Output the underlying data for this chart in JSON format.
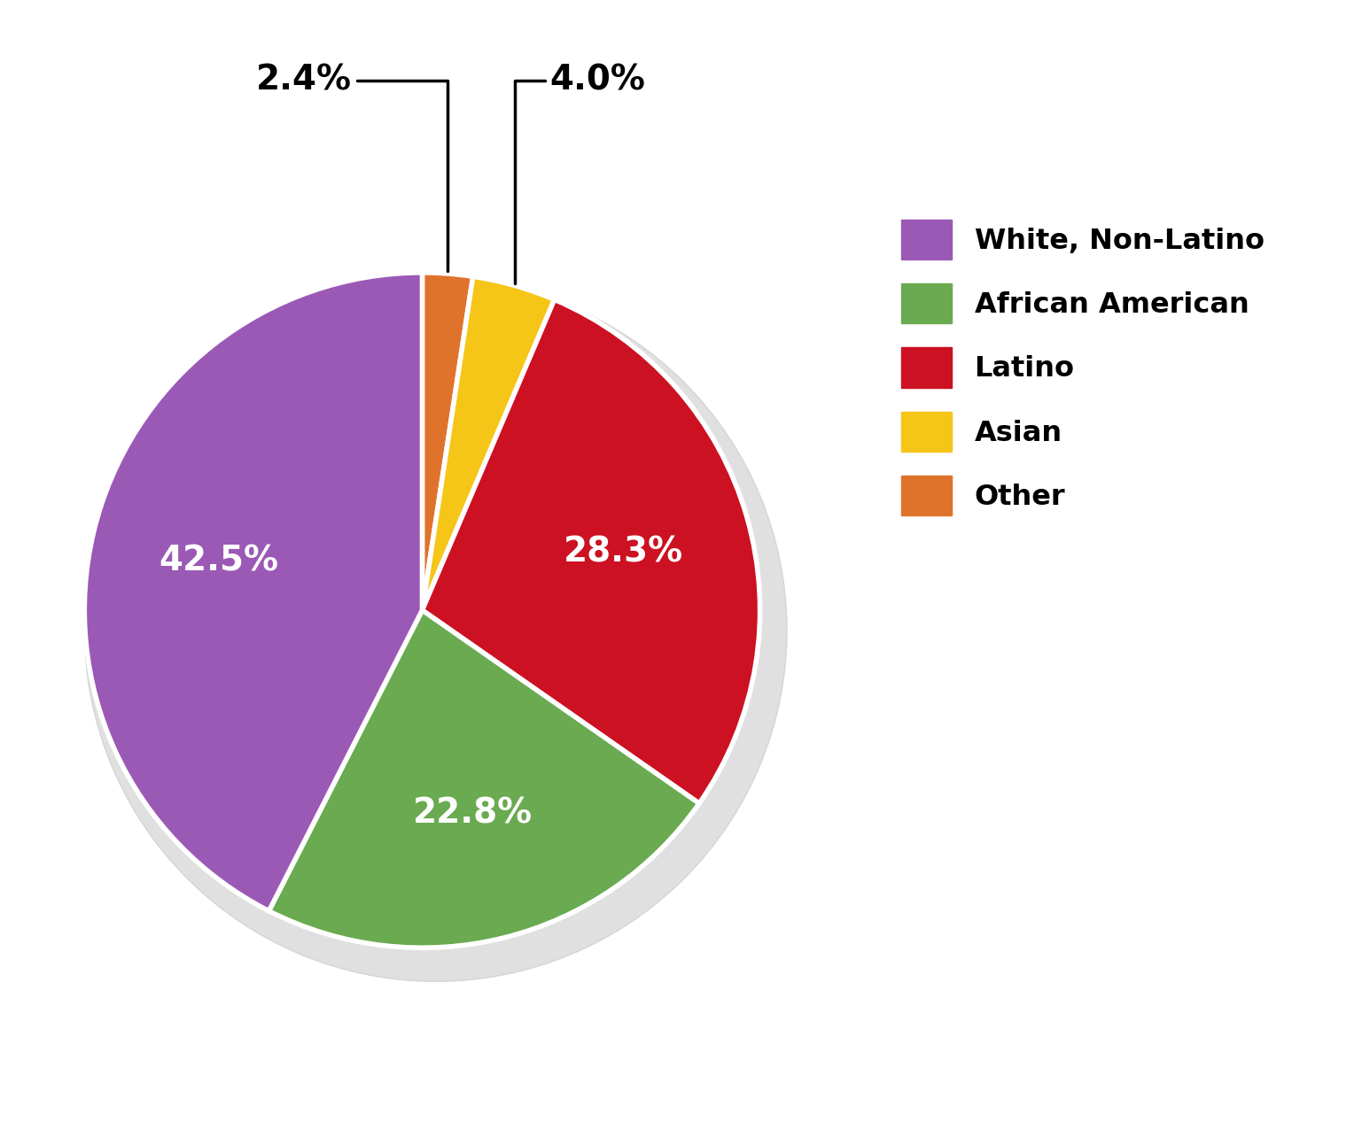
{
  "labels": [
    "White, Non-Latino",
    "African American",
    "Latino",
    "Asian",
    "Other"
  ],
  "colors": [
    "#9b59b6",
    "#6aaa50",
    "#cc1122",
    "#f5c518",
    "#e0732b"
  ],
  "legend_labels": [
    "White, Non-Latino",
    "African American",
    "Latino",
    "Asian",
    "Other"
  ],
  "pct_labels": [
    "42.5%",
    "22.8%",
    "28.3%",
    "4.0%",
    "2.4%"
  ],
  "label_colors_inside": [
    "white",
    "white",
    "white"
  ],
  "background_color": "#ffffff",
  "pie_edge_color": "white",
  "pie_linewidth": 4,
  "figsize": [
    15.37,
    12.76
  ],
  "dpi": 100,
  "pie_order": [
    4,
    3,
    2,
    1,
    0
  ],
  "pie_order_vals": [
    2.4,
    4.0,
    28.3,
    22.8,
    42.5
  ],
  "pie_order_colors": [
    "#e0732b",
    "#f5c518",
    "#cc1122",
    "#6aaa50",
    "#9b59b6"
  ],
  "pie_order_labels": [
    "2.4%",
    "4.0%",
    "28.3%",
    "22.8%",
    "42.5%"
  ],
  "pie_order_label_colors": [
    "outside",
    "outside",
    "white",
    "white",
    "white"
  ]
}
